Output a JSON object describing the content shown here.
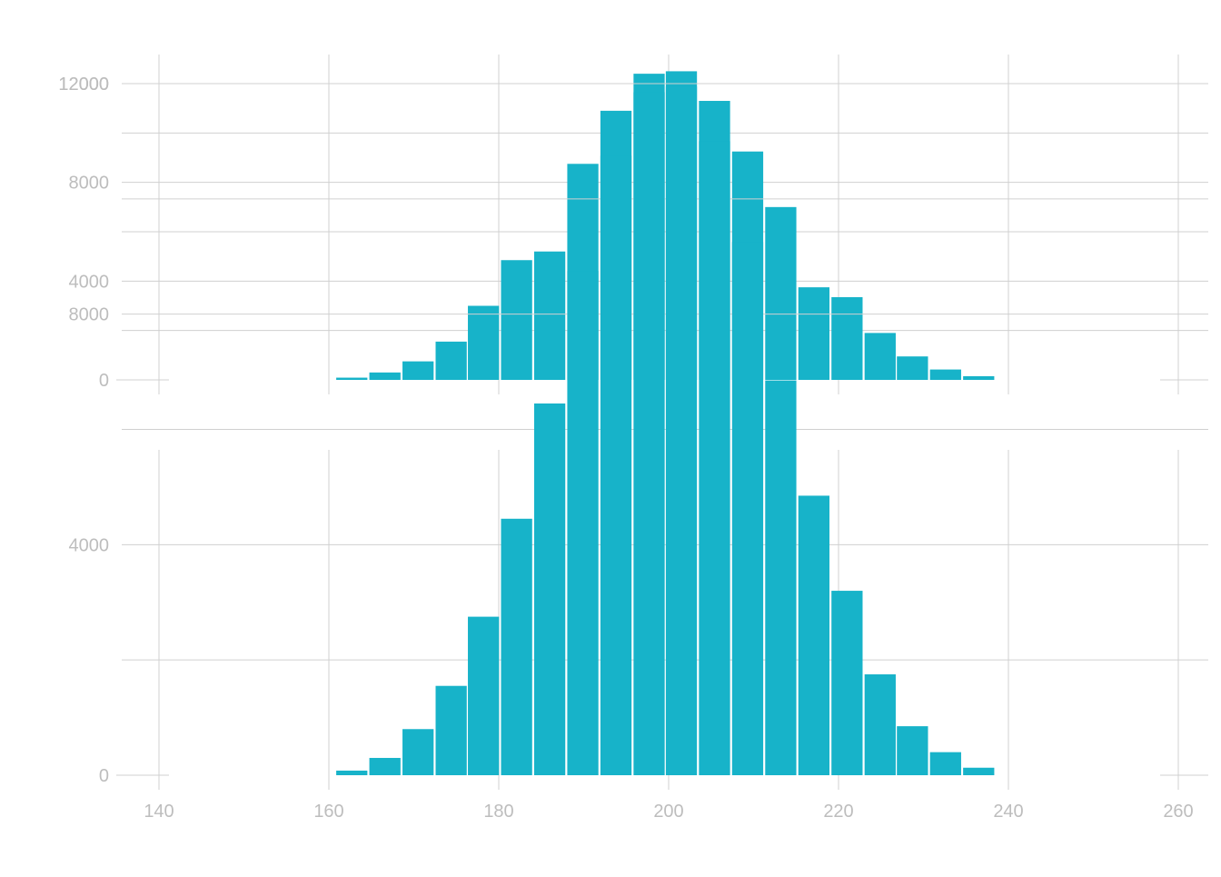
{
  "colors": {
    "bar": "#17b3c9",
    "grid": "#d0d0d0",
    "tick_text": "#bdbdbd",
    "background": "#ffffff"
  },
  "chart_data": [
    {
      "type": "bar",
      "title": "",
      "xlabel": "",
      "ylabel": "",
      "grid": true,
      "xlim": [
        140,
        260
      ],
      "ylim": [
        0,
        12500
      ],
      "x_ticks": [
        140,
        160,
        180,
        200,
        220,
        240,
        260
      ],
      "y_ticks": [
        0,
        4000,
        8000,
        12000
      ],
      "bin_width": 3.88,
      "bins": [
        {
          "x": 162.7,
          "value": 90
        },
        {
          "x": 166.6,
          "value": 300
        },
        {
          "x": 170.5,
          "value": 750
        },
        {
          "x": 174.4,
          "value": 1550
        },
        {
          "x": 178.2,
          "value": 3000
        },
        {
          "x": 182.1,
          "value": 4850
        },
        {
          "x": 186.0,
          "value": 5200
        },
        {
          "x": 189.9,
          "value": 8750
        },
        {
          "x": 193.8,
          "value": 10900
        },
        {
          "x": 197.7,
          "value": 12400
        },
        {
          "x": 201.5,
          "value": 12500
        },
        {
          "x": 205.4,
          "value": 11300
        },
        {
          "x": 209.3,
          "value": 9250
        },
        {
          "x": 213.2,
          "value": 7000
        },
        {
          "x": 217.1,
          "value": 3750
        },
        {
          "x": 221.0,
          "value": 3350
        },
        {
          "x": 224.9,
          "value": 1900
        },
        {
          "x": 228.7,
          "value": 950
        },
        {
          "x": 232.6,
          "value": 420
        },
        {
          "x": 236.5,
          "value": 150
        }
      ]
    },
    {
      "type": "bar",
      "title": "",
      "xlabel": "",
      "ylabel": "",
      "grid": true,
      "xlim": [
        140,
        260
      ],
      "ylim": [
        0,
        12500
      ],
      "x_ticks": [
        140,
        160,
        180,
        200,
        220,
        240,
        260
      ],
      "y_ticks": [
        0,
        4000,
        8000,
        12000
      ],
      "bin_width": 3.88,
      "bins": [
        {
          "x": 162.7,
          "value": 80
        },
        {
          "x": 166.6,
          "value": 300
        },
        {
          "x": 170.5,
          "value": 800
        },
        {
          "x": 174.4,
          "value": 1550
        },
        {
          "x": 178.2,
          "value": 2750
        },
        {
          "x": 182.1,
          "value": 4450
        },
        {
          "x": 186.0,
          "value": 6450
        },
        {
          "x": 189.9,
          "value": 8750
        },
        {
          "x": 193.8,
          "value": 10750
        },
        {
          "x": 197.7,
          "value": 11850
        },
        {
          "x": 201.5,
          "value": 11950
        },
        {
          "x": 205.4,
          "value": 11000
        },
        {
          "x": 209.3,
          "value": 9250
        },
        {
          "x": 213.2,
          "value": 6850
        },
        {
          "x": 217.1,
          "value": 4850
        },
        {
          "x": 221.0,
          "value": 3200
        },
        {
          "x": 224.9,
          "value": 1750
        },
        {
          "x": 228.7,
          "value": 850
        },
        {
          "x": 232.6,
          "value": 400
        },
        {
          "x": 236.5,
          "value": 130
        }
      ]
    }
  ]
}
